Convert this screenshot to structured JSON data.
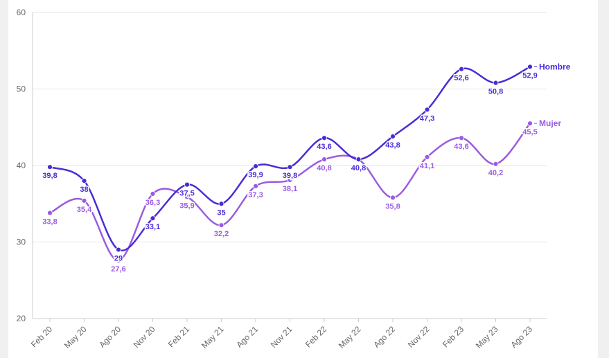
{
  "chart_data": {
    "type": "line",
    "categories": [
      "Feb 20",
      "May 20",
      "Ago 20",
      "Nov 20",
      "Feb 21",
      "May 21",
      "Ago 21",
      "Nov 21",
      "Feb 22",
      "May 22",
      "Ago 22",
      "Nov 22",
      "Feb 23",
      "May 23",
      "Ago 23"
    ],
    "series": [
      {
        "name": "Hombre",
        "color": "#4B2BD6",
        "values": [
          39.8,
          38,
          29,
          33.1,
          37.5,
          35,
          39.9,
          39.8,
          43.6,
          40.8,
          43.8,
          47.3,
          52.6,
          50.8,
          52.9
        ],
        "labels": [
          "39,8",
          "38",
          "29",
          "33,1",
          "37,5",
          "35",
          "39,9",
          "39,8",
          "43,6",
          "40,8",
          "43,8",
          "47,3",
          "52,6",
          "50,8",
          "52,9"
        ]
      },
      {
        "name": "Mujer",
        "color": "#9B5BE0",
        "values": [
          33.8,
          35.4,
          27.6,
          36.3,
          35.9,
          32.2,
          37.3,
          38.1,
          40.8,
          40.8,
          35.8,
          41.1,
          43.6,
          40.2,
          45.5
        ],
        "labels": [
          "33,8",
          "35,4",
          "27,6",
          "36,3",
          "35,9",
          "32,2",
          "37,3",
          "38,1",
          "40,8",
          "",
          "35,8",
          "41,1",
          "43,6",
          "40,2",
          "45,5"
        ]
      }
    ],
    "y_ticks": [
      "20",
      "30",
      "40",
      "50",
      "60"
    ],
    "ylim": [
      20,
      60
    ],
    "grid": true,
    "legend": "end-of-line"
  }
}
